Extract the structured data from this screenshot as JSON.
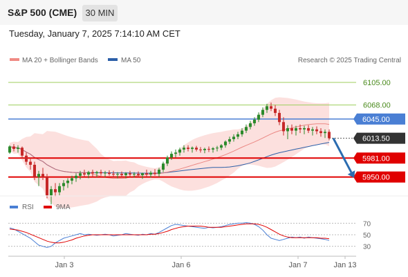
{
  "header": {
    "title": "S&P 500 (CME)",
    "timeframe": "30 MIN"
  },
  "datetime": "Tuesday, January 7, 2025 7:14:10 AM CET",
  "legend": {
    "item1": "MA 20 + Bollinger Bands",
    "item2": "MA 50"
  },
  "credit": "Research © 2025 Trading Central",
  "rsi_legend": {
    "item1": "RSI",
    "item2": "9MA"
  },
  "colors": {
    "ma20": "#e6706b",
    "ma50": "#2c5fa8",
    "bands": "#fbd3d0",
    "up": "#2b8a2b",
    "down": "#c62828",
    "resistance": "#9cce5b",
    "support": "#e00000",
    "ma_line": "#4a7fd4",
    "price": "#333333",
    "arrow": "#2b6cb0"
  },
  "chart_data": [
    {
      "type": "candlestick",
      "symbol": "S&P 500 (CME)",
      "interval": "30 MIN",
      "ylim": [
        5920,
        6130
      ],
      "x_ticks": [
        "Jan 3",
        "Jan 6",
        "Jan 7",
        "Jan 13"
      ],
      "levels": [
        {
          "name": "resistance-2",
          "value": 6105.0,
          "label": "6105.00",
          "style": "green"
        },
        {
          "name": "resistance-1",
          "value": 6068.0,
          "label": "6068.00",
          "style": "green"
        },
        {
          "name": "ma50-level",
          "value": 6045.0,
          "label": "6045.00",
          "style": "blue-badge"
        },
        {
          "name": "last-price",
          "value": 6013.5,
          "label": "6013.50",
          "style": "dark-badge"
        },
        {
          "name": "support-1",
          "value": 5981.0,
          "label": "5981.00",
          "style": "red-badge"
        },
        {
          "name": "support-2",
          "value": 5950.0,
          "label": "5950.00",
          "style": "red-badge"
        }
      ],
      "candles": [
        [
          5990,
          6002,
          5988,
          6000
        ],
        [
          6000,
          6004,
          5992,
          5996
        ],
        [
          5996,
          6002,
          5990,
          5998
        ],
        [
          5998,
          6000,
          5980,
          5985
        ],
        [
          5985,
          5990,
          5970,
          5975
        ],
        [
          5975,
          5982,
          5962,
          5970
        ],
        [
          5970,
          5975,
          5945,
          5950
        ],
        [
          5950,
          5960,
          5935,
          5955
        ],
        [
          5955,
          5965,
          5945,
          5950
        ],
        [
          5950,
          5955,
          5915,
          5920
        ],
        [
          5920,
          5935,
          5905,
          5930
        ],
        [
          5930,
          5940,
          5918,
          5925
        ],
        [
          5925,
          5940,
          5920,
          5935
        ],
        [
          5935,
          5945,
          5928,
          5940
        ],
        [
          5940,
          5948,
          5932,
          5944
        ],
        [
          5944,
          5952,
          5938,
          5948
        ],
        [
          5948,
          5956,
          5942,
          5952
        ],
        [
          5952,
          5960,
          5946,
          5956
        ],
        [
          5956,
          5962,
          5950,
          5954
        ],
        [
          5954,
          5960,
          5948,
          5958
        ],
        [
          5958,
          5962,
          5950,
          5956
        ],
        [
          5956,
          5960,
          5950,
          5958
        ],
        [
          5958,
          5962,
          5952,
          5956
        ],
        [
          5956,
          5960,
          5950,
          5957
        ],
        [
          5957,
          5961,
          5952,
          5955
        ],
        [
          5955,
          5960,
          5950,
          5954
        ],
        [
          5954,
          5958,
          5948,
          5955
        ],
        [
          5955,
          5959,
          5950,
          5953
        ],
        [
          5953,
          5958,
          5948,
          5956
        ],
        [
          5956,
          5960,
          5950,
          5954
        ],
        [
          5954,
          5958,
          5949,
          5955
        ],
        [
          5955,
          5959,
          5950,
          5953
        ],
        [
          5953,
          5957,
          5947,
          5956
        ],
        [
          5956,
          5962,
          5951,
          5954
        ],
        [
          5954,
          5960,
          5949,
          5957
        ],
        [
          5957,
          5963,
          5952,
          5955
        ],
        [
          5955,
          5965,
          5950,
          5962
        ],
        [
          5962,
          5975,
          5958,
          5972
        ],
        [
          5972,
          5985,
          5968,
          5982
        ],
        [
          5982,
          5992,
          5978,
          5988
        ],
        [
          5988,
          5995,
          5982,
          5990
        ],
        [
          5990,
          5998,
          5985,
          5995
        ],
        [
          5995,
          6002,
          5990,
          5998
        ],
        [
          5998,
          6002,
          5992,
          5996
        ],
        [
          5996,
          6000,
          5990,
          5998
        ],
        [
          5998,
          6001,
          5992,
          5995
        ],
        [
          5995,
          5999,
          5990,
          5994
        ],
        [
          5994,
          5998,
          5989,
          5996
        ],
        [
          5996,
          6000,
          5991,
          5995
        ],
        [
          5995,
          5999,
          5990,
          5997
        ],
        [
          5997,
          6001,
          5992,
          5998
        ],
        [
          5998,
          6004,
          5994,
          6002
        ],
        [
          6002,
          6010,
          5998,
          6008
        ],
        [
          6008,
          6016,
          6004,
          6012
        ],
        [
          6012,
          6020,
          6008,
          6016
        ],
        [
          6016,
          6024,
          6012,
          6020
        ],
        [
          6020,
          6030,
          6016,
          6026
        ],
        [
          6026,
          6036,
          6022,
          6032
        ],
        [
          6032,
          6042,
          6028,
          6038
        ],
        [
          6038,
          6048,
          6034,
          6044
        ],
        [
          6044,
          6056,
          6040,
          6052
        ],
        [
          6052,
          6064,
          6048,
          6060
        ],
        [
          6060,
          6070,
          6055,
          6066
        ],
        [
          6066,
          6072,
          6058,
          6062
        ],
        [
          6062,
          6068,
          6050,
          6055
        ],
        [
          6055,
          6060,
          6035,
          6040
        ],
        [
          6040,
          6048,
          6018,
          6025
        ],
        [
          6025,
          6035,
          6012,
          6030
        ],
        [
          6030,
          6036,
          6020,
          6026
        ],
        [
          6026,
          6034,
          6018,
          6030
        ],
        [
          6030,
          6036,
          6022,
          6028
        ],
        [
          6028,
          6034,
          6020,
          6030
        ],
        [
          6030,
          6035,
          6022,
          6026
        ],
        [
          6026,
          6032,
          6018,
          6028
        ],
        [
          6028,
          6033,
          6020,
          6025
        ],
        [
          6025,
          6030,
          6016,
          6022
        ],
        [
          6022,
          6028,
          6014,
          6024
        ],
        [
          6024,
          6028,
          6010,
          6013.5
        ]
      ],
      "forecast": {
        "from": 6013.5,
        "to": 5953
      }
    },
    {
      "type": "line",
      "name": "RSI",
      "ylim": [
        20,
        80
      ],
      "y_ticks": [
        30,
        50,
        70
      ],
      "series": [
        {
          "name": "RSI",
          "values": [
            62,
            60,
            56,
            52,
            48,
            44,
            38,
            32,
            30,
            28,
            30,
            36,
            40,
            44,
            46,
            48,
            50,
            52,
            50,
            51,
            50,
            49,
            50,
            51,
            50,
            48,
            49,
            50,
            52,
            51,
            50,
            49,
            51,
            50,
            52,
            51,
            54,
            58,
            62,
            66,
            68,
            67,
            66,
            65,
            64,
            63,
            62,
            61,
            63,
            62,
            63,
            64,
            66,
            68,
            69,
            70,
            70,
            71,
            70,
            68,
            64,
            58,
            50,
            44,
            42,
            40,
            42,
            44,
            46,
            45,
            46,
            44,
            46,
            45,
            44,
            43,
            42,
            40
          ]
        },
        {
          "name": "9MA",
          "values": [
            60,
            59,
            58,
            56,
            54,
            51,
            48,
            45,
            42,
            39,
            37,
            36,
            36,
            37,
            39,
            41,
            44,
            46,
            48,
            49,
            50,
            50,
            50,
            50,
            50,
            50,
            50,
            50,
            50,
            50,
            50,
            50,
            50,
            50,
            51,
            51,
            52,
            54,
            56,
            59,
            61,
            63,
            64,
            65,
            65,
            65,
            65,
            64,
            63,
            63,
            63,
            63,
            64,
            65,
            66,
            67,
            68,
            69,
            69,
            69,
            68,
            66,
            63,
            59,
            55,
            51,
            48,
            46,
            45,
            45,
            45,
            45,
            45,
            45,
            45,
            44,
            44,
            43
          ]
        }
      ]
    }
  ]
}
